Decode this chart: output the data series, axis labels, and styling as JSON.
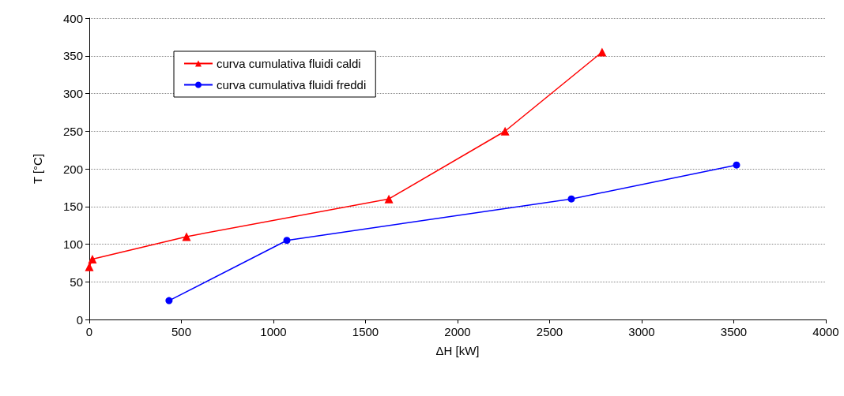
{
  "chart_data": {
    "type": "line",
    "xlabel": "ΔH [kW]",
    "ylabel": "T [°C]",
    "xlim": [
      0,
      4000
    ],
    "xticks": [
      0,
      500,
      1000,
      1500,
      2000,
      2500,
      3000,
      3500,
      4000
    ],
    "ylim": [
      0,
      400
    ],
    "yticks": [
      0,
      50,
      100,
      150,
      200,
      250,
      300,
      350,
      400
    ],
    "grid": "y",
    "legend": "top left",
    "line_style": "solid",
    "series": [
      {
        "name": "curva cumulativa fluidi caldi",
        "color": "#ff0000",
        "marker": "triangle",
        "x": [
          0,
          17,
          528,
          1627,
          2258,
          2785
        ],
        "values": [
          70,
          80,
          110,
          160,
          250,
          355
        ]
      },
      {
        "name": "curva cumulativa fluidi freddi",
        "color": "#0000ff",
        "marker": "circle",
        "x": [
          433,
          1073,
          2618,
          3515
        ],
        "values": [
          25,
          105,
          160,
          205
        ]
      }
    ]
  }
}
